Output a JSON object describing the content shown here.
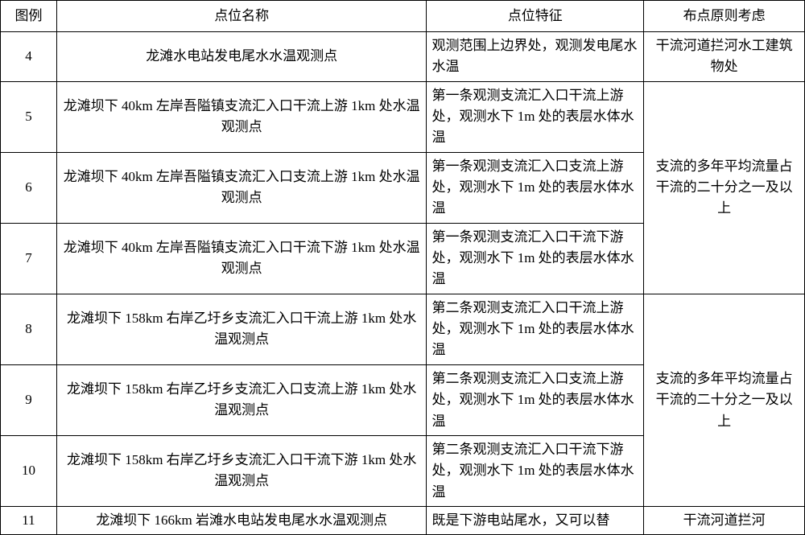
{
  "table": {
    "headers": {
      "col1": "图例",
      "col2": "点位名称",
      "col3": "点位特征",
      "col4": "布点原则考虑"
    },
    "rows": [
      {
        "id": "4",
        "name": "龙滩水电站发电尾水水温观测点",
        "feature": "观测范围上边界处，观测发电尾水水温",
        "principle": "干流河道拦河水工建筑物处"
      },
      {
        "id": "5",
        "name": "龙滩坝下 40km 左岸吾隘镇支流汇入口干流上游 1km 处水温观测点",
        "feature": "第一条观测支流汇入口干流上游处，观测水下 1m 处的表层水体水温"
      },
      {
        "id": "6",
        "name": "龙滩坝下 40km 左岸吾隘镇支流汇入口支流上游 1km 处水温观测点",
        "feature": "第一条观测支流汇入口支流上游处，观测水下 1m 处的表层水体水温",
        "principle": "支流的多年平均流量占干流的二十分之一及以上"
      },
      {
        "id": "7",
        "name": "龙滩坝下 40km 左岸吾隘镇支流汇入口干流下游 1km 处水温观测点",
        "feature": "第一条观测支流汇入口干流下游处，观测水下 1m 处的表层水体水温"
      },
      {
        "id": "8",
        "name": "龙滩坝下 158km 右岸乙圩乡支流汇入口干流上游 1km 处水温观测点",
        "feature": "第二条观测支流汇入口干流上游处，观测水下 1m 处的表层水体水温"
      },
      {
        "id": "9",
        "name": "龙滩坝下 158km 右岸乙圩乡支流汇入口支流上游 1km 处水温观测点",
        "feature": "第二条观测支流汇入口支流上游处，观测水下 1m 处的表层水体水温",
        "principle": "支流的多年平均流量占干流的二十分之一及以上"
      },
      {
        "id": "10",
        "name": "龙滩坝下 158km 右岸乙圩乡支流汇入口干流下游 1km 处水温观测点",
        "feature": "第二条观测支流汇入口干流下游处，观测水下 1m 处的表层水体水温"
      },
      {
        "id": "11",
        "name": "龙滩坝下 166km 岩滩水电站发电尾水水温观测点",
        "feature": "既是下游电站尾水，又可以替",
        "principle": "干流河道拦河"
      }
    ]
  }
}
